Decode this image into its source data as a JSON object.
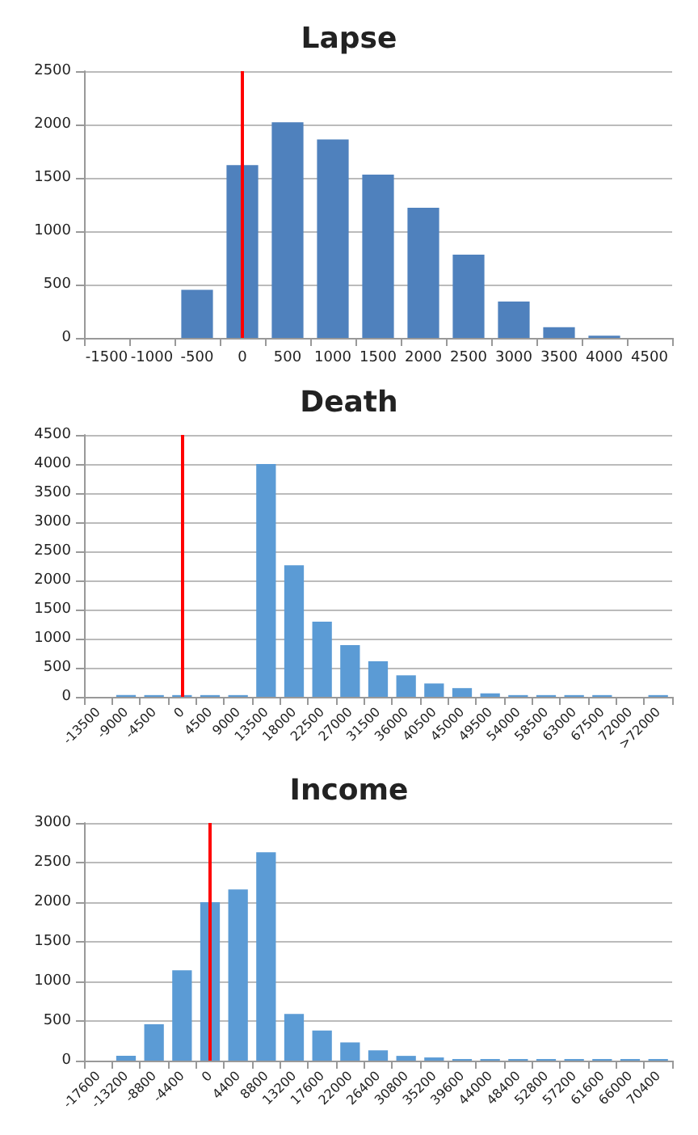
{
  "chart_data": [
    {
      "type": "bar",
      "title": "Lapse",
      "categories": [
        "-1500",
        "-1000",
        "-500",
        "0",
        "500",
        "1000",
        "1500",
        "2000",
        "2500",
        "3000",
        "3500",
        "4000",
        "4500"
      ],
      "values": [
        0,
        0,
        450,
        1620,
        2020,
        1860,
        1530,
        1220,
        780,
        340,
        100,
        20,
        0
      ],
      "color": "#4f81bd",
      "ylim": [
        0,
        2500
      ],
      "yticks": [
        0,
        500,
        1000,
        1500,
        2000,
        2500
      ],
      "grid": "y",
      "ref_lines": [
        {
          "axis": "x",
          "value": "0",
          "color": "#ff0000"
        }
      ]
    },
    {
      "type": "bar",
      "title": "Death",
      "categories": [
        "-13500",
        "-9000",
        "-4500",
        "0",
        "4500",
        "9000",
        "13500",
        "18000",
        "22500",
        "27000",
        "31500",
        "36000",
        "40500",
        "45000",
        "49500",
        "54000",
        "58500",
        "63000",
        "67500",
        "72000",
        ">72000"
      ],
      "values": [
        0,
        30,
        30,
        30,
        30,
        30,
        4000,
        2260,
        1290,
        890,
        610,
        370,
        230,
        150,
        60,
        30,
        30,
        30,
        30,
        0,
        30
      ],
      "color": "#5b9bd5",
      "ylim": [
        0,
        4500
      ],
      "yticks": [
        0,
        500,
        1000,
        1500,
        2000,
        2500,
        3000,
        3500,
        4000,
        4500
      ],
      "grid": "y",
      "ref_lines": [
        {
          "axis": "x",
          "value": "0",
          "color": "#ff0000"
        }
      ]
    },
    {
      "type": "bar",
      "title": "Income",
      "categories": [
        "-17600",
        "-13200",
        "-8800",
        "-4400",
        "0",
        "4400",
        "8800",
        "13200",
        "17600",
        "22000",
        "26400",
        "30800",
        "35200",
        "39600",
        "44000",
        "48400",
        "52800",
        "57200",
        "61600",
        "66000",
        "70400"
      ],
      "values": [
        0,
        60,
        460,
        1140,
        2000,
        2160,
        2630,
        590,
        380,
        230,
        130,
        60,
        40,
        20,
        20,
        20,
        20,
        20,
        20,
        20,
        20
      ],
      "color": "#5b9bd5",
      "ylim": [
        0,
        3000
      ],
      "yticks": [
        0,
        500,
        1000,
        1500,
        2000,
        2500,
        3000
      ],
      "grid": "y",
      "ref_lines": [
        {
          "axis": "x",
          "value": "0",
          "color": "#ff0000"
        }
      ]
    }
  ]
}
